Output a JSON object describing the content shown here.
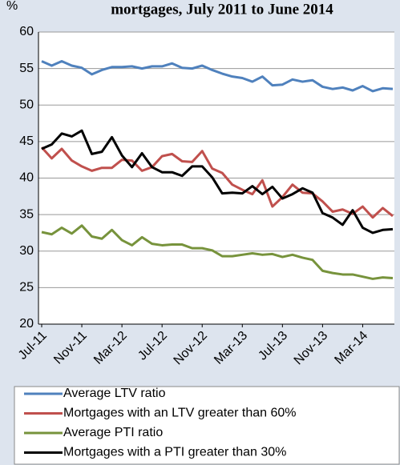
{
  "chart_data": {
    "type": "line",
    "title": "mortgages, July 2011 to June 2014",
    "y_label": "%",
    "categories": [
      "Jul-11",
      null,
      null,
      null,
      "Nov-11",
      null,
      null,
      null,
      "Mar-12",
      null,
      null,
      null,
      "Jul-12",
      null,
      null,
      null,
      "Nov-12",
      null,
      null,
      null,
      "Mar-13",
      null,
      null,
      null,
      "Jul-13",
      null,
      null,
      null,
      "Nov-13",
      null,
      null,
      null,
      "Mar-14",
      null,
      null,
      null
    ],
    "series": [
      {
        "name": "Average LTV ratio",
        "color": "#4f81bd",
        "values": [
          56,
          55.4,
          56,
          55.4,
          55.1,
          54.2,
          54.8,
          55.2,
          55.2,
          55.3,
          55,
          55.3,
          55.3,
          55.7,
          55.1,
          55,
          55.4,
          54.8,
          54.3,
          53.9,
          53.7,
          53.2,
          53.9,
          52.7,
          52.8,
          53.5,
          53.2,
          53.4,
          52.5,
          52.2,
          52.4,
          52,
          52.6,
          51.9,
          52.3,
          52.2
        ]
      },
      {
        "name": "Mortgages with an LTV greater than 60%",
        "color": "#c0504d",
        "values": [
          44.2,
          42.7,
          44,
          42.4,
          41.6,
          41,
          41.4,
          41.4,
          42.5,
          42.4,
          41,
          41.5,
          43,
          43.3,
          42.3,
          42.2,
          43.7,
          41.3,
          40.7,
          39.1,
          38.4,
          37.8,
          39.7,
          36.1,
          37.4,
          39.1,
          38,
          37.9,
          36.8,
          35.4,
          35.7,
          35.1,
          36.1,
          34.6,
          35.9,
          34.8
        ]
      },
      {
        "name": "Average PTI ratio",
        "color": "#77933c",
        "values": [
          32.6,
          32.3,
          33.2,
          32.4,
          33.5,
          32,
          31.7,
          32.9,
          31.5,
          30.8,
          31.9,
          31,
          30.8,
          30.9,
          30.9,
          30.4,
          30.4,
          30.1,
          29.3,
          29.3,
          29.5,
          29.7,
          29.5,
          29.6,
          29.2,
          29.5,
          29.1,
          28.8,
          27.3,
          27,
          26.8,
          26.8,
          26.5,
          26.2,
          26.4,
          26.3
        ]
      },
      {
        "name": "Mortgages with a PTI greater than 30%",
        "color": "#000000",
        "values": [
          44,
          44.6,
          46.1,
          45.7,
          46.5,
          43.3,
          43.6,
          45.6,
          43.1,
          41.5,
          43.4,
          41.5,
          40.8,
          40.8,
          40.3,
          41.6,
          41.6,
          40.1,
          37.9,
          38,
          37.9,
          38.9,
          37.8,
          38.8,
          37.2,
          37.8,
          38.6,
          38,
          35.2,
          34.6,
          33.6,
          35.6,
          33.2,
          32.5,
          32.9,
          33
        ]
      }
    ],
    "ylim": [
      20,
      60
    ],
    "yticks": [
      20,
      25,
      30,
      35,
      40,
      45,
      50,
      55,
      60
    ],
    "grid": true,
    "legend": "bottom"
  }
}
